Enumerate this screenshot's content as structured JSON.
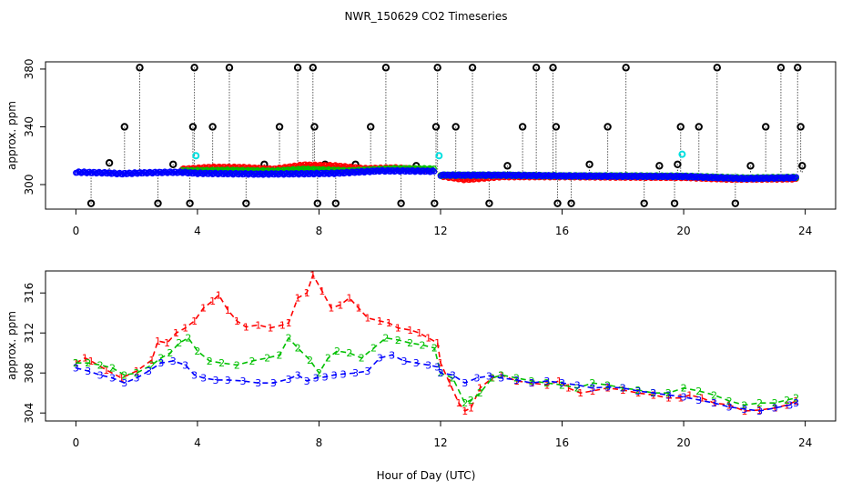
{
  "chart_data": [
    {
      "type": "scatter",
      "panel": "top",
      "title": "NWR_150629  CO2 Timeseries",
      "xlabel": "",
      "ylabel": "approx. ppm",
      "xlim": [
        -1,
        25
      ],
      "ylim": [
        283,
        385
      ],
      "x_ticks": [
        0,
        4,
        8,
        12,
        16,
        20,
        24
      ],
      "y_ticks": [
        300,
        340,
        380
      ],
      "series": [
        {
          "name": "red",
          "color": "#ff0000",
          "marker": "o",
          "segments": [
            [
              [
                3.5,
                310.6
              ],
              [
                4.5,
                312
              ],
              [
                5.5,
                311.8
              ],
              [
                6.5,
                310.6
              ],
              [
                7.5,
                313.5
              ],
              [
                8.5,
                313
              ],
              [
                9.5,
                311
              ],
              [
                10.5,
                311.5
              ],
              [
                11.5,
                310.2
              ]
            ],
            [
              [
                12.0,
                306
              ],
              [
                12.8,
                303.5
              ],
              [
                14,
                305.5
              ],
              [
                16,
                305.5
              ],
              [
                18,
                305.2
              ],
              [
                20,
                305
              ],
              [
                21.5,
                303.8
              ],
              [
                23.7,
                304
              ]
            ]
          ]
        },
        {
          "name": "green",
          "color": "#00c000",
          "marker": "o",
          "segments": [
            [
              [
                3.5,
                309.5
              ],
              [
                5,
                309.8
              ],
              [
                6.5,
                309.3
              ],
              [
                7.5,
                310.6
              ],
              [
                9,
                309.5
              ],
              [
                10.5,
                311
              ],
              [
                11.8,
                310.8
              ]
            ],
            [
              [
                12.0,
                306.5
              ],
              [
                14,
                306.5
              ],
              [
                16,
                306
              ],
              [
                18,
                306
              ],
              [
                20,
                305.8
              ],
              [
                22,
                304.5
              ],
              [
                23.7,
                305
              ]
            ]
          ]
        },
        {
          "name": "blue",
          "color": "#0000ff",
          "marker": "o",
          "segments": [
            [
              [
                0,
                308.6
              ],
              [
                1,
                308.1
              ],
              [
                1.5,
                307.5
              ],
              [
                2,
                308
              ],
              [
                3,
                308.5
              ],
              [
                3.5,
                308.5
              ],
              [
                4,
                307.8
              ],
              [
                6,
                307.3
              ],
              [
                7.5,
                307.5
              ],
              [
                8.5,
                307.8
              ],
              [
                10,
                309.5
              ],
              [
                11,
                309.4
              ],
              [
                11.8,
                309.2
              ]
            ],
            [
              [
                12.0,
                306.5
              ],
              [
                14,
                306.5
              ],
              [
                16,
                306
              ],
              [
                18,
                305.8
              ],
              [
                20,
                305.6
              ],
              [
                22,
                304.2
              ],
              [
                23.7,
                304.8
              ]
            ]
          ]
        }
      ],
      "cyan_points": [
        [
          3.95,
          320
        ],
        [
          11.95,
          320
        ],
        [
          19.95,
          321
        ]
      ],
      "black_points": {
        "baseline": 308,
        "x": [
          0.5,
          1.1,
          1.6,
          2.1,
          2.7,
          3.2,
          3.75,
          3.85,
          3.9,
          4.5,
          5.05,
          5.6,
          6.2,
          6.7,
          7.3,
          7.8,
          7.85,
          7.95,
          8.2,
          8.55,
          9.2,
          9.7,
          10.2,
          10.7,
          11.2,
          11.8,
          11.85,
          11.9,
          12.5,
          13.05,
          13.6,
          14.2,
          14.7,
          15.15,
          15.7,
          15.8,
          15.85,
          16.3,
          16.9,
          17.5,
          18.1,
          18.7,
          19.2,
          19.7,
          19.8,
          19.9,
          20.5,
          21.1,
          21.7,
          22.2,
          22.7,
          23.2,
          23.75,
          23.85,
          23.9
        ],
        "y": [
          287,
          315,
          340,
          381,
          287,
          314,
          287,
          340,
          381,
          340,
          381,
          287,
          314,
          340,
          381,
          381,
          340,
          287,
          314,
          287,
          314,
          340,
          381,
          287,
          313,
          287,
          340,
          381,
          340,
          381,
          287,
          313,
          340,
          381,
          381,
          340,
          287,
          287,
          314,
          340,
          381,
          287,
          313,
          287,
          314,
          340,
          340,
          381,
          287,
          313,
          340,
          381,
          381,
          340,
          313
        ]
      }
    },
    {
      "type": "line",
      "panel": "bottom",
      "xlabel": "Hour of Day (UTC)",
      "ylabel": "approx. ppm",
      "xlim": [
        -1,
        25
      ],
      "ylim": [
        303.2,
        318.2
      ],
      "x_ticks": [
        0,
        4,
        8,
        12,
        16,
        20,
        24
      ],
      "y_ticks": [
        304,
        308,
        312,
        316
      ],
      "series": [
        {
          "name": "1",
          "label": "1",
          "color": "#ff0000",
          "x": [
            0,
            0.3,
            0.5,
            1.0,
            1.5,
            2.0,
            2.5,
            2.7,
            3.0,
            3.3,
            3.6,
            3.9,
            4.2,
            4.5,
            4.7,
            5.0,
            5.3,
            5.6,
            6.0,
            6.4,
            6.8,
            7.0,
            7.3,
            7.6,
            7.8,
            8.1,
            8.4,
            8.7,
            9.0,
            9.3,
            9.6,
            10.0,
            10.3,
            10.6,
            11.0,
            11.3,
            11.6,
            11.9,
            12.0,
            12.3,
            12.6,
            12.8,
            13.0,
            13.3,
            13.7,
            14.0,
            14.5,
            15.0,
            15.5,
            15.9,
            16.2,
            16.6,
            17.0,
            17.5,
            18.0,
            18.5,
            19.0,
            19.5,
            19.9,
            20.2,
            20.6,
            21.0,
            21.5,
            22.0,
            22.5,
            23.0,
            23.4,
            23.7
          ],
          "y": [
            309.0,
            309.5,
            309.2,
            308.3,
            307.5,
            308.2,
            309.3,
            311.2,
            311.0,
            312.0,
            312.5,
            313.2,
            314.5,
            315.2,
            315.8,
            314.3,
            313.2,
            312.6,
            312.8,
            312.5,
            312.8,
            313.0,
            315.5,
            316.0,
            317.8,
            316.2,
            314.5,
            314.8,
            315.5,
            314.5,
            313.5,
            313.2,
            313.0,
            312.5,
            312.3,
            312.0,
            311.5,
            311.0,
            309.0,
            307.0,
            305.0,
            304.2,
            304.5,
            306.5,
            307.5,
            307.8,
            307.2,
            307.0,
            306.8,
            307.2,
            306.5,
            306.0,
            306.2,
            306.5,
            306.3,
            306.0,
            305.8,
            305.5,
            305.5,
            305.8,
            305.5,
            305.0,
            304.8,
            304.2,
            304.3,
            304.5,
            304.8,
            305.2
          ]
        },
        {
          "name": "2",
          "label": "2",
          "color": "#00c000",
          "x": [
            0,
            0.4,
            0.8,
            1.2,
            1.6,
            2.0,
            2.5,
            2.8,
            3.1,
            3.4,
            3.7,
            4.0,
            4.4,
            4.8,
            5.3,
            5.8,
            6.3,
            6.7,
            7.0,
            7.3,
            7.7,
            8.0,
            8.3,
            8.6,
            9.0,
            9.4,
            9.8,
            10.2,
            10.6,
            11.0,
            11.4,
            11.8,
            12.0,
            12.4,
            12.8,
            13.0,
            13.3,
            13.7,
            14.0,
            14.5,
            15.0,
            15.5,
            16.0,
            16.5,
            17.0,
            17.5,
            18.0,
            18.5,
            19.0,
            19.5,
            20.0,
            20.5,
            21.0,
            21.5,
            22.0,
            22.5,
            23.0,
            23.4,
            23.7
          ],
          "y": [
            309.0,
            309.0,
            308.8,
            308.5,
            307.8,
            308.0,
            308.8,
            309.5,
            310.0,
            311.0,
            311.5,
            310.2,
            309.2,
            309.0,
            308.8,
            309.2,
            309.5,
            309.8,
            311.5,
            310.5,
            309.3,
            308.0,
            309.5,
            310.2,
            310.0,
            309.5,
            310.5,
            311.5,
            311.3,
            311.0,
            310.8,
            310.5,
            308.0,
            307.5,
            305.0,
            305.3,
            306.0,
            307.5,
            307.8,
            307.5,
            307.2,
            307.0,
            306.8,
            306.5,
            307.0,
            306.8,
            306.5,
            306.3,
            306.0,
            306.0,
            306.5,
            306.2,
            305.8,
            305.2,
            304.8,
            305.0,
            305.0,
            305.3,
            305.5
          ]
        },
        {
          "name": "3",
          "label": "3",
          "color": "#0000ff",
          "x": [
            0,
            0.4,
            0.8,
            1.2,
            1.6,
            2.0,
            2.4,
            2.8,
            3.2,
            3.6,
            3.9,
            4.2,
            4.6,
            5.0,
            5.5,
            6.0,
            6.5,
            7.0,
            7.3,
            7.6,
            7.9,
            8.2,
            8.5,
            8.8,
            9.2,
            9.6,
            10.0,
            10.4,
            10.8,
            11.2,
            11.6,
            11.9,
            12.0,
            12.4,
            12.8,
            13.2,
            13.6,
            14.0,
            14.5,
            15.0,
            15.5,
            16.0,
            16.5,
            17.0,
            17.5,
            18.0,
            18.5,
            19.0,
            19.5,
            20.0,
            20.5,
            21.0,
            21.5,
            22.0,
            22.5,
            23.0,
            23.5,
            23.7
          ],
          "y": [
            308.5,
            308.2,
            307.8,
            307.5,
            307.0,
            307.5,
            308.2,
            309.0,
            309.2,
            308.8,
            307.8,
            307.5,
            307.3,
            307.3,
            307.2,
            307.0,
            307.0,
            307.4,
            307.8,
            307.2,
            307.5,
            307.6,
            307.8,
            307.9,
            308.0,
            308.2,
            309.5,
            309.8,
            309.2,
            309.0,
            308.8,
            308.6,
            308.0,
            307.8,
            307.0,
            307.5,
            307.7,
            307.5,
            307.3,
            307.0,
            307.2,
            307.0,
            306.8,
            306.5,
            306.6,
            306.5,
            306.2,
            306.0,
            305.8,
            305.6,
            305.3,
            305.0,
            304.6,
            304.4,
            304.2,
            304.5,
            304.8,
            305.0
          ]
        }
      ]
    }
  ]
}
